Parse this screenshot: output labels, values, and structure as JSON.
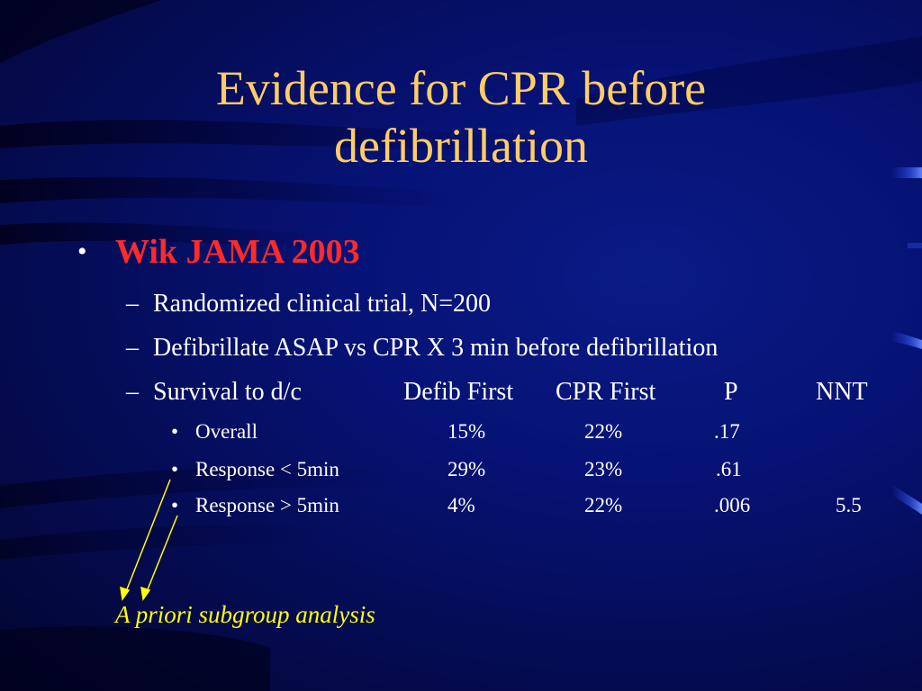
{
  "title": {
    "line1": "Evidence for CPR before",
    "line2": "defibrillation"
  },
  "bullet": {
    "marker": "•",
    "text": "Wik JAMA 2003"
  },
  "subbullets": {
    "marker": "–",
    "items": [
      "Randomized clinical trial, N=200",
      "Defibrillate ASAP vs CPR X 3 min before defibrillation"
    ]
  },
  "table": {
    "row_label": "Survival to d/c",
    "headers": [
      "Defib First",
      "CPR First",
      "P",
      "NNT"
    ],
    "marker": "•",
    "rows": [
      {
        "label": "Overall",
        "defib": "15%",
        "cpr": "22%",
        "p": ".17",
        "nnt": ""
      },
      {
        "label": "Response < 5min",
        "defib": "29%",
        "cpr": "23%",
        "p": ".61",
        "nnt": ""
      },
      {
        "label": "Response > 5min",
        "defib": "4%",
        "cpr": "22%",
        "p": ".006",
        "nnt": "5.5"
      }
    ]
  },
  "annotation": "A priori subgroup analysis",
  "colors": {
    "title": "#ffcc66",
    "bullet": "#ff2a2a",
    "text": "#ffffff",
    "annotation": "#ffff00",
    "background": "#061274"
  }
}
